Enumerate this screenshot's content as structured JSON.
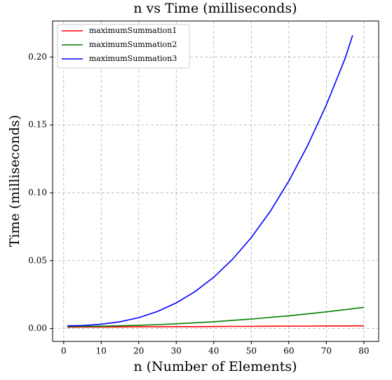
{
  "chart_data": {
    "type": "line",
    "title": "n vs Time (milliseconds)",
    "x_label": "n (Number of Elements)",
    "y_label": "Time (milliseconds)",
    "xlim": [
      -2.95,
      83.95
    ],
    "xticks": [
      0,
      10,
      20,
      30,
      40,
      50,
      60,
      70,
      80
    ],
    "ylim": [
      -0.0095,
      0.2265
    ],
    "yticks": [
      {
        "value": 0,
        "label": "0.00"
      },
      0.05,
      {
        "value": 0.1,
        "label": "0.10"
      },
      0.15,
      {
        "value": 0.2,
        "label": "0.20"
      }
    ],
    "grid": true,
    "legend": "upper left",
    "series": [
      {
        "name": "maximumSummation1",
        "color": "#ff0000",
        "x": [
          1,
          5,
          10,
          15,
          20,
          25,
          30,
          35,
          40,
          45,
          50,
          55,
          60,
          65,
          70,
          75,
          80
        ],
        "values": [
          0.001,
          0.0011,
          0.0011,
          0.0012,
          0.0013,
          0.0013,
          0.0014,
          0.0014,
          0.0015,
          0.0016,
          0.0016,
          0.0017,
          0.0018,
          0.0018,
          0.0019,
          0.0019,
          0.002
        ]
      },
      {
        "name": "maximumSummation2",
        "color": "#008000",
        "x": [
          1,
          5,
          10,
          15,
          20,
          25,
          30,
          35,
          40,
          45,
          50,
          55,
          60,
          65,
          70,
          75,
          80
        ],
        "values": [
          0.0015,
          0.0016,
          0.0017,
          0.002,
          0.0024,
          0.0029,
          0.0035,
          0.0042,
          0.005,
          0.006,
          0.007,
          0.0082,
          0.0094,
          0.0108,
          0.0123,
          0.0139,
          0.0156
        ]
      },
      {
        "name": "maximumSummation3",
        "color": "#0000ff",
        "x": [
          1,
          5,
          10,
          15,
          20,
          25,
          30,
          35,
          40,
          45,
          50,
          55,
          60,
          65,
          70,
          75,
          77
        ],
        "values": [
          0.002,
          0.0022,
          0.0032,
          0.005,
          0.008,
          0.0126,
          0.0189,
          0.0272,
          0.0378,
          0.051,
          0.067,
          0.0861,
          0.1086,
          0.1347,
          0.1647,
          0.1989,
          0.216
        ]
      }
    ]
  }
}
